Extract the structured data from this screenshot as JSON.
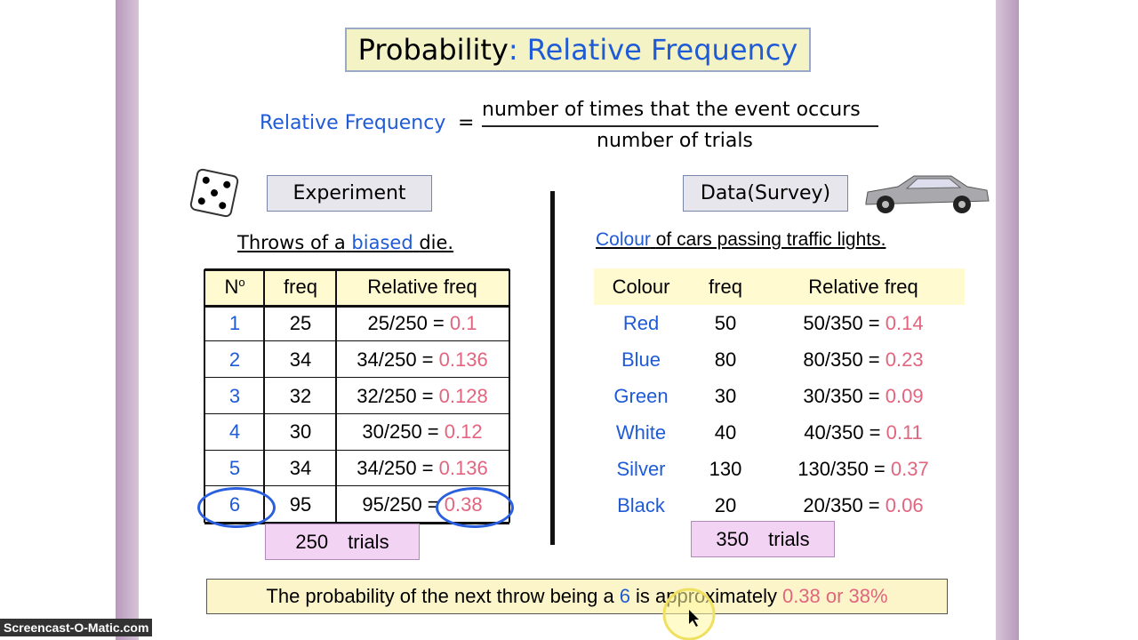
{
  "title": {
    "main": "Probability",
    "sub": ": Relative Frequency"
  },
  "formula": {
    "lhs": "Relative Frequency",
    "equals": "=",
    "numerator": "number of times that the event occurs",
    "denominator": "number of trials"
  },
  "experiment": {
    "label": "Experiment",
    "caption": {
      "before": "Throws of a",
      "highlight": "biased",
      "after": "die."
    },
    "table": {
      "headers": {
        "number": "N",
        "number_sup": "o",
        "freq": "freq",
        "relative": "Relative freq"
      },
      "rows": [
        [
          "1",
          "25",
          "25/250 =",
          "0.1"
        ],
        [
          "2",
          "34",
          "34/250 =",
          "0.136"
        ],
        [
          "3",
          "32",
          "32/250 =",
          "0.128"
        ],
        [
          "4",
          "30",
          "30/250 =",
          "0.12"
        ],
        [
          "5",
          "34",
          "34/250 =",
          "0.136"
        ],
        [
          "6",
          "95",
          "95/250 =",
          "0.38"
        ]
      ]
    },
    "total": {
      "count": "250",
      "unit": "trials"
    }
  },
  "survey": {
    "label": "Data(Survey)",
    "caption": {
      "highlight": "Colour",
      "after": "of cars passing traffic lights."
    },
    "table": {
      "headers": {
        "colour": "Colour",
        "freq": "freq",
        "relative": "Relative freq"
      },
      "rows": [
        [
          "Red",
          "50",
          "50/350 =",
          "0.14"
        ],
        [
          "Blue",
          "80",
          "80/350 =",
          "0.23"
        ],
        [
          "Green",
          "30",
          "30/350 =",
          "0.09"
        ],
        [
          "White",
          "40",
          "40/350 =",
          "0.11"
        ],
        [
          "Silver",
          "130",
          "130/350 =",
          "0.37"
        ],
        [
          "Black",
          "20",
          "20/350 =",
          "0.06"
        ]
      ]
    },
    "total": {
      "count": "350",
      "unit": "trials"
    }
  },
  "conclusion": {
    "before": "The probability of the next throw being a",
    "number": "6",
    "middle": "is approximately",
    "answer": "0.38 or 38%"
  },
  "watermark": "Screencast-O-Matic.com"
}
